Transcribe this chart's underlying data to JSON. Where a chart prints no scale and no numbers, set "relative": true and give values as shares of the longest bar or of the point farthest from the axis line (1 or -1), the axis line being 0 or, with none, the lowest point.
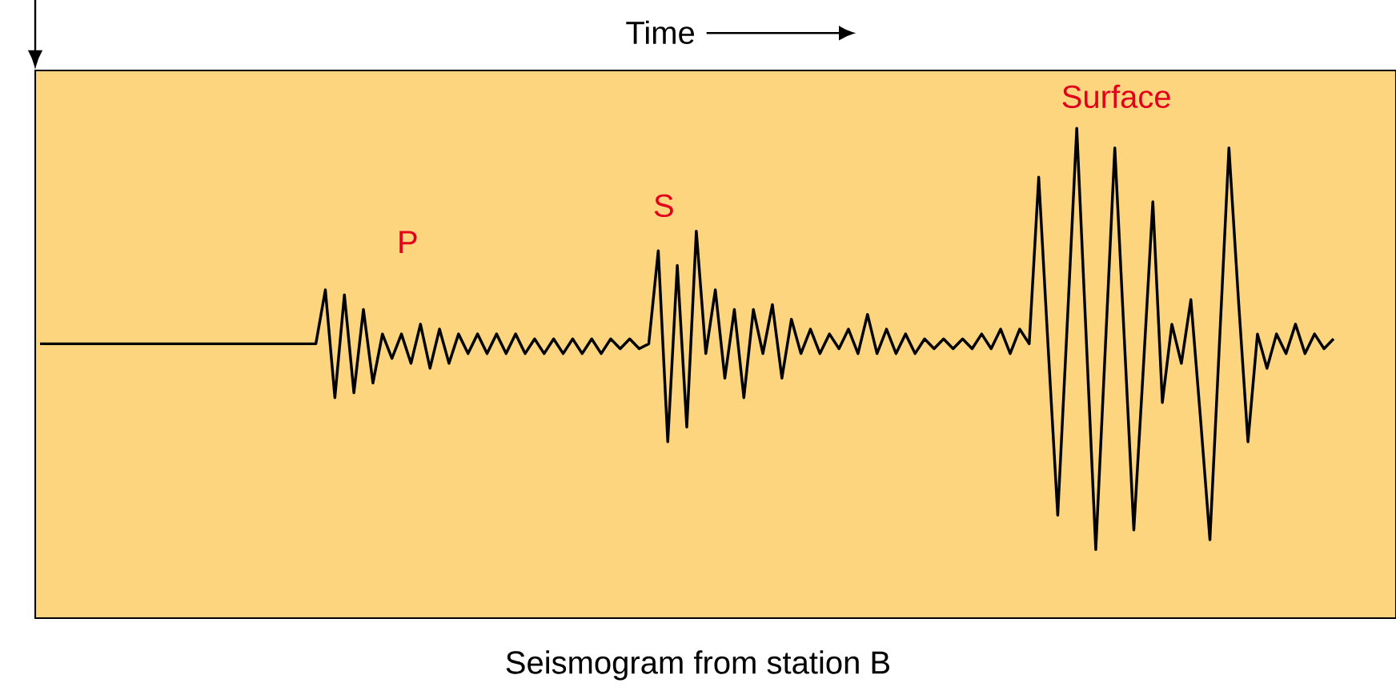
{
  "chart_data": {
    "type": "line",
    "relative": true,
    "title": "Seismogram from station B",
    "xlabel": "Time",
    "annotations": [
      "P",
      "S",
      "Surface"
    ],
    "categories": [
      null,
      null,
      null,
      null,
      null,
      null,
      null,
      null,
      null,
      null,
      null,
      null,
      null,
      null,
      null,
      null,
      null,
      null,
      null,
      null,
      null,
      null,
      null,
      null,
      null,
      null,
      null,
      null,
      null,
      null,
      null,
      null,
      null,
      null,
      null,
      null,
      null,
      null,
      null,
      null,
      null,
      null,
      null,
      null,
      null,
      null,
      null,
      null,
      null,
      null,
      null,
      null,
      null,
      null,
      null,
      null,
      null,
      null,
      null,
      null,
      null,
      null,
      null,
      null,
      null,
      null,
      null,
      null,
      null,
      null,
      null,
      null,
      null,
      null,
      null,
      null,
      null,
      null,
      null,
      null,
      null,
      null,
      null,
      null,
      null,
      null,
      null,
      null,
      null,
      null,
      null,
      null,
      null,
      null,
      null,
      null,
      null,
      null,
      null,
      null,
      null,
      null,
      null,
      null,
      null,
      null,
      null,
      null,
      null,
      null,
      null,
      null,
      null,
      null,
      null,
      null,
      null,
      null,
      null,
      null,
      null,
      null,
      null,
      null,
      null,
      null,
      null,
      null,
      null,
      null,
      null,
      null,
      null,
      null,
      null,
      null,
      null
    ],
    "series": [
      {
        "color": "#000000",
        "values": [
          0.56,
          0.56,
          0.56,
          0.56,
          0.56,
          0.56,
          0.56,
          0.56,
          0.56,
          0.56,
          0.56,
          0.56,
          0.56,
          0.56,
          0.56,
          0.56,
          0.56,
          0.56,
          0.56,
          0.56,
          0.56,
          0.56,
          0.56,
          0.56,
          0.56,
          0.56,
          0.56,
          0.56,
          0.56,
          0.56,
          0.67,
          0.45,
          0.66,
          0.46,
          0.63,
          0.48,
          0.58,
          0.53,
          0.58,
          0.52,
          0.6,
          0.51,
          0.59,
          0.52,
          0.58,
          0.54,
          0.58,
          0.54,
          0.58,
          0.54,
          0.58,
          0.54,
          0.57,
          0.54,
          0.57,
          0.54,
          0.57,
          0.54,
          0.57,
          0.54,
          0.57,
          0.55,
          0.57,
          0.55,
          0.56,
          0.75,
          0.36,
          0.72,
          0.39,
          0.79,
          0.54,
          0.67,
          0.49,
          0.63,
          0.45,
          0.63,
          0.54,
          0.64,
          0.49,
          0.61,
          0.54,
          0.59,
          0.54,
          0.58,
          0.55,
          0.59,
          0.54,
          0.62,
          0.54,
          0.59,
          0.54,
          0.58,
          0.54,
          0.57,
          0.55,
          0.57,
          0.55,
          0.57,
          0.55,
          0.58,
          0.55,
          0.59,
          0.54,
          0.59,
          0.56,
          0.9,
          0.55,
          0.21,
          0.6,
          1.0,
          0.57,
          0.14,
          0.55,
          0.96,
          0.57,
          0.18,
          0.51,
          0.85,
          0.44,
          0.6,
          0.52,
          0.65,
          0.41,
          0.16,
          0.56,
          0.96,
          0.65,
          0.36,
          0.58,
          0.51,
          0.58,
          0.54,
          0.6,
          0.54,
          0.58,
          0.55,
          0.57
        ]
      }
    ]
  }
}
